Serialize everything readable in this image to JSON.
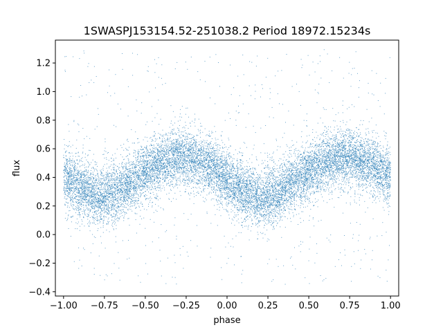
{
  "chart_data": {
    "type": "scatter",
    "title": "1SWASPJ153154.52-251038.2 Period 18972.15234s",
    "xlabel": "phase",
    "ylabel": "flux",
    "xlim": [
      -1.05,
      1.05
    ],
    "ylim": [
      -0.43,
      1.36
    ],
    "x_ticks": [
      -1.0,
      -0.75,
      -0.5,
      -0.25,
      0.0,
      0.25,
      0.5,
      0.75,
      1.0
    ],
    "x_tick_labels": [
      "−1.00",
      "−0.75",
      "−0.50",
      "−0.25",
      "0.00",
      "0.25",
      "0.50",
      "0.75",
      "1.00"
    ],
    "y_ticks": [
      -0.4,
      -0.2,
      0.0,
      0.2,
      0.4,
      0.6,
      0.8,
      1.0,
      1.2
    ],
    "y_tick_labels": [
      "−0.4",
      "−0.2",
      "0.0",
      "0.2",
      "0.4",
      "0.6",
      "0.8",
      "1.0",
      "1.2"
    ],
    "grid": false,
    "legend": "none",
    "marker_color": "#1f77b4",
    "series": [
      {
        "phase_range": [
          -1.0,
          1.0
        ],
        "point_count": 14000,
        "trend_phase": [
          -1.0,
          -0.9,
          -0.8,
          -0.7,
          -0.6,
          -0.5,
          -0.4,
          -0.3,
          -0.2,
          -0.1,
          0.0,
          0.1,
          0.2,
          0.3,
          0.4,
          0.5,
          0.6,
          0.7,
          0.8,
          0.9,
          1.0
        ],
        "trend_flux": [
          0.4,
          0.33,
          0.27,
          0.28,
          0.36,
          0.44,
          0.5,
          0.54,
          0.53,
          0.48,
          0.38,
          0.3,
          0.25,
          0.29,
          0.37,
          0.44,
          0.5,
          0.54,
          0.53,
          0.48,
          0.4
        ],
        "scatter_sigma": 0.1,
        "outlier_fraction": 0.05,
        "outlier_range": [
          -0.35,
          1.3
        ]
      }
    ]
  }
}
